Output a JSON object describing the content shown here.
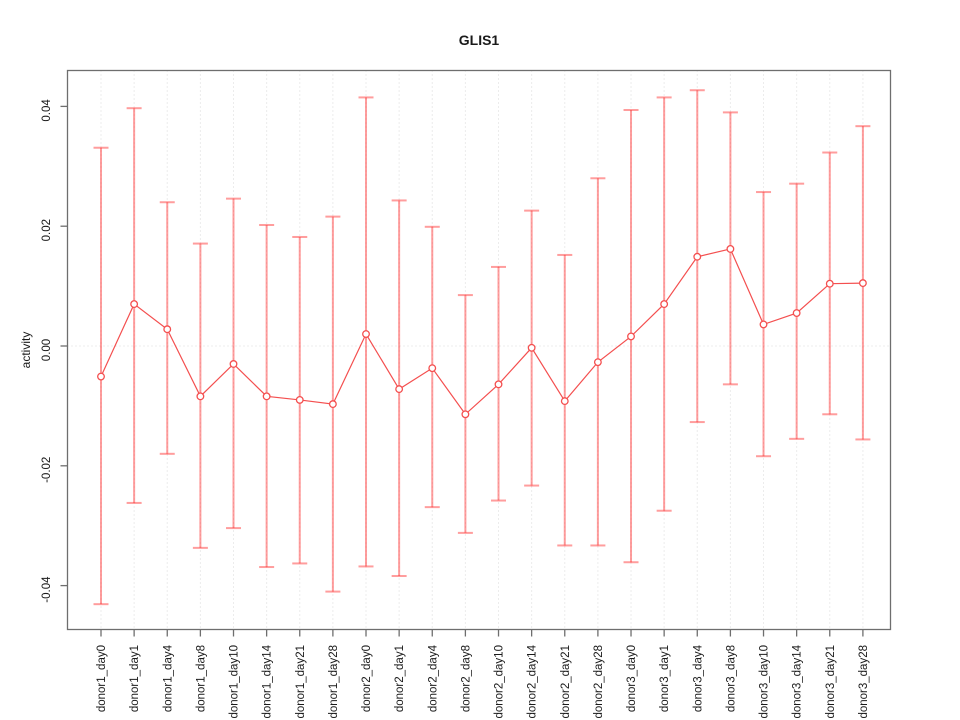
{
  "chart_data": {
    "type": "scatter",
    "title": "GLIS1",
    "xlabel": "",
    "ylabel": "activity",
    "ylim": [
      -0.046,
      0.046
    ],
    "yticks": {
      "values": [
        0.04,
        0.02,
        0.0,
        -0.02,
        -0.04
      ],
      "labels": [
        "0.04",
        "0.02",
        "0.00",
        "-0.02",
        "-0.04"
      ]
    },
    "grid": "dotted vertical gridline at every category; dotted horizontal line at y=0",
    "legend_position": "none",
    "categories": [
      "donor1_day0",
      "donor1_day1",
      "donor1_day4",
      "donor1_day8",
      "donor1_day10",
      "donor1_day14",
      "donor1_day21",
      "donor1_day28",
      "donor2_day0",
      "donor2_day1",
      "donor2_day4",
      "donor2_day8",
      "donor2_day10",
      "donor2_day14",
      "donor2_day21",
      "donor2_day28",
      "donor3_day0",
      "donor3_day1",
      "donor3_day4",
      "donor3_day8",
      "donor3_day10",
      "donor3_day14",
      "donor3_day21",
      "donor3_day28"
    ],
    "series": [
      {
        "name": "activity (mean with error bars, open circles joined by line)",
        "marker": "open-circle",
        "values": [
          -0.0051,
          0.007,
          0.0028,
          -0.0084,
          -0.003,
          -0.0084,
          -0.009,
          -0.0097,
          0.002,
          -0.0072,
          -0.0037,
          -0.0114,
          -0.0064,
          -0.0003,
          -0.0092,
          -0.0027,
          0.0016,
          0.007,
          0.0149,
          0.0162,
          0.0036,
          0.0055,
          0.0104,
          0.0105
        ],
        "upper": [
          0.0331,
          0.0397,
          0.024,
          0.0171,
          0.0246,
          0.0202,
          0.0182,
          0.0216,
          0.0415,
          0.0243,
          0.0199,
          0.0085,
          0.0132,
          0.0226,
          0.0152,
          0.028,
          0.0394,
          0.0415,
          0.0427,
          0.039,
          0.0257,
          0.0271,
          0.0323,
          0.0367
        ],
        "lower": [
          -0.0431,
          -0.0262,
          -0.018,
          -0.0337,
          -0.0304,
          -0.0369,
          -0.0363,
          -0.041,
          -0.0368,
          -0.0384,
          -0.0269,
          -0.0312,
          -0.0258,
          -0.0233,
          -0.0333,
          -0.0333,
          -0.0361,
          -0.0275,
          -0.0127,
          -0.0064,
          -0.0184,
          -0.0155,
          -0.0114,
          -0.0156
        ]
      }
    ],
    "colors": {
      "point_line": "#f44f4f",
      "error_bar": "rgba(255,60,60,0.5)",
      "grid": "#d9d9d9",
      "axis": "#6e6e6e",
      "text": "#1a1a1a",
      "background": "#ffffff"
    }
  }
}
